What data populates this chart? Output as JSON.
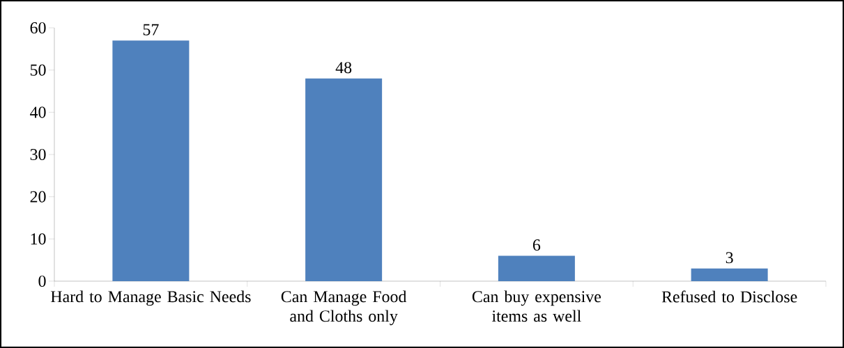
{
  "chart_data": {
    "type": "bar",
    "categories": [
      "Hard to Manage Basic Needs",
      "Can Manage Food and Cloths only",
      "Can buy expensive items as well",
      "Refused to Disclose"
    ],
    "values": [
      57,
      48,
      6,
      3
    ],
    "color": "#4f81bd",
    "data_labels": true,
    "ylim": [
      0,
      60
    ],
    "yticks": [
      0,
      10,
      20,
      30,
      40,
      50,
      60
    ]
  }
}
